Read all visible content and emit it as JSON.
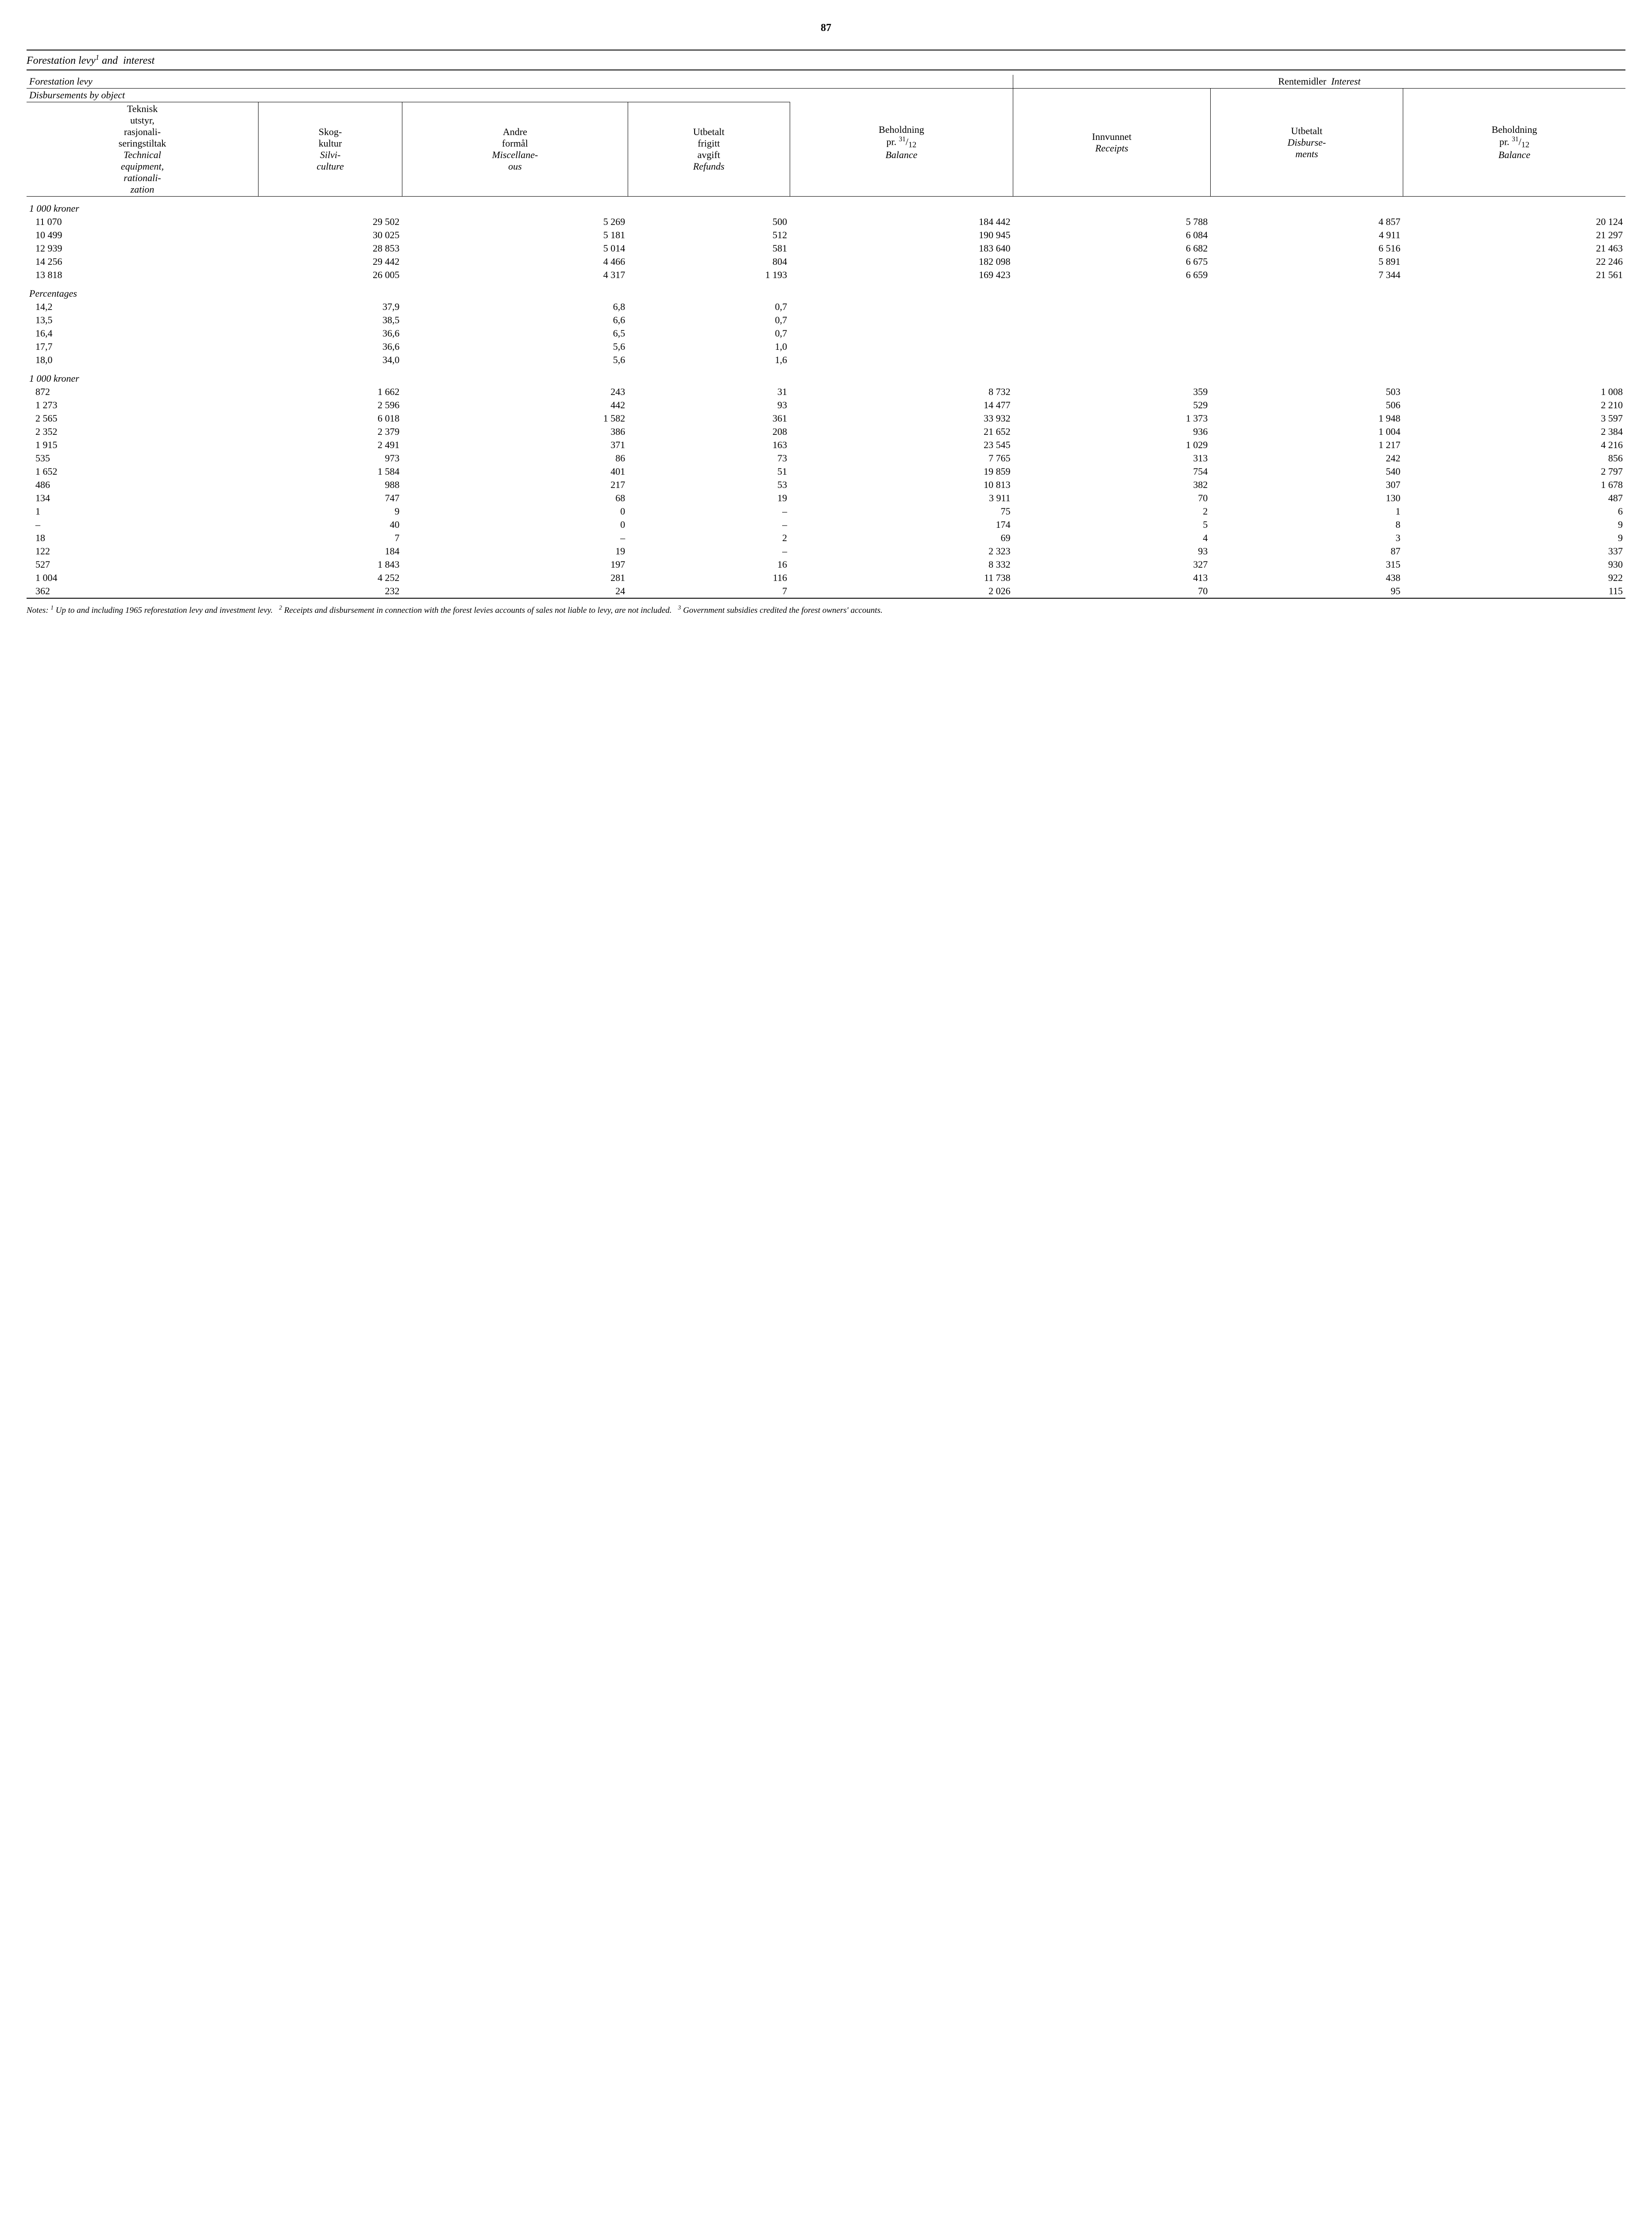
{
  "pageNumber": "87",
  "title": "Forestation levy¹ and interest",
  "headers": {
    "levy": "Forestation levy",
    "interest": "Rentemidler Interest",
    "disbursements": "Disbursements by object",
    "col1": "Teknisk utstyr, rasjonaliseringstiltak Technical equipment, rationalization",
    "col2": "Skogkultur Silviculture",
    "col3": "Andre formål Miscellaneous",
    "col4": "Utbetalt frigitt avgift Refunds",
    "col5": "Beholdning pr. ³¹/₁₂ Balance",
    "col6": "Innvunnet Receipts",
    "col7": "Utbetalt Disbursements",
    "col8": "Beholdning pr. ³¹/₁₂ Balance"
  },
  "sections": {
    "kroner1": "1 000 kroner",
    "percentages": "Percentages",
    "kroner2": "1 000 kroner"
  },
  "block1": [
    [
      "11 070",
      "29 502",
      "5 269",
      "500",
      "184 442",
      "5 788",
      "4 857",
      "20 124"
    ],
    [
      "10 499",
      "30 025",
      "5 181",
      "512",
      "190 945",
      "6 084",
      "4 911",
      "21 297"
    ],
    [
      "12 939",
      "28 853",
      "5 014",
      "581",
      "183 640",
      "6 682",
      "6 516",
      "21 463"
    ],
    [
      "14 256",
      "29 442",
      "4 466",
      "804",
      "182 098",
      "6 675",
      "5 891",
      "22 246"
    ],
    [
      "13 818",
      "26 005",
      "4 317",
      "1 193",
      "169 423",
      "6 659",
      "7 344",
      "21 561"
    ]
  ],
  "block2": [
    [
      "14,2",
      "37,9",
      "6,8",
      "0,7",
      "",
      "",
      "",
      ""
    ],
    [
      "13,5",
      "38,5",
      "6,6",
      "0,7",
      "",
      "",
      "",
      ""
    ],
    [
      "16,4",
      "36,6",
      "6,5",
      "0,7",
      "",
      "",
      "",
      ""
    ],
    [
      "17,7",
      "36,6",
      "5,6",
      "1,0",
      "",
      "",
      "",
      ""
    ],
    [
      "18,0",
      "34,0",
      "5,6",
      "1,6",
      "",
      "",
      "",
      ""
    ]
  ],
  "block3": [
    [
      "872",
      "1 662",
      "243",
      "31",
      "8 732",
      "359",
      "503",
      "1 008"
    ],
    [
      "1 273",
      "2 596",
      "442",
      "93",
      "14 477",
      "529",
      "506",
      "2 210"
    ],
    [
      "2 565",
      "6 018",
      "1 582",
      "361",
      "33 932",
      "1 373",
      "1 948",
      "3 597"
    ],
    [
      "2 352",
      "2 379",
      "386",
      "208",
      "21 652",
      "936",
      "1 004",
      "2 384"
    ],
    [
      "1 915",
      "2 491",
      "371",
      "163",
      "23 545",
      "1 029",
      "1 217",
      "4 216"
    ],
    [
      "535",
      "973",
      "86",
      "73",
      "7 765",
      "313",
      "242",
      "856"
    ],
    [
      "1 652",
      "1 584",
      "401",
      "51",
      "19 859",
      "754",
      "540",
      "2 797"
    ],
    [
      "486",
      "988",
      "217",
      "53",
      "10 813",
      "382",
      "307",
      "1 678"
    ],
    [
      "134",
      "747",
      "68",
      "19",
      "3 911",
      "70",
      "130",
      "487"
    ],
    [
      "1",
      "9",
      "0",
      "–",
      "75",
      "2",
      "1",
      "6"
    ],
    [
      "–",
      "40",
      "0",
      "–",
      "174",
      "5",
      "8",
      "9"
    ],
    [
      "18",
      "7",
      "–",
      "2",
      "69",
      "4",
      "3",
      "9"
    ],
    [
      "122",
      "184",
      "19",
      "–",
      "2 323",
      "93",
      "87",
      "337"
    ],
    [
      "527",
      "1 843",
      "197",
      "16",
      "8 332",
      "327",
      "315",
      "930"
    ],
    [
      "1 004",
      "4 252",
      "281",
      "116",
      "11 738",
      "413",
      "438",
      "922"
    ],
    [
      "362",
      "232",
      "24",
      "7",
      "2 026",
      "70",
      "95",
      "115"
    ]
  ],
  "notes": "Notes: ¹ Up to and including 1965 reforestation levy and investment levy.   ² Receipts and disbursement in connection with the forest levies accounts of sales not liable to levy, are not included.   ³ Government subsidies credited the forest owners' accounts."
}
